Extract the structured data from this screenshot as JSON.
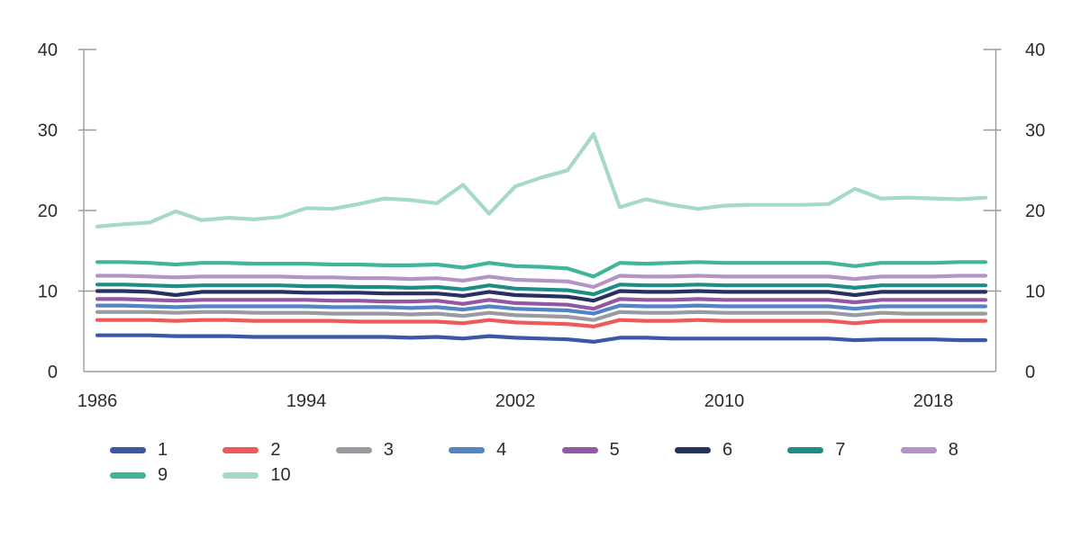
{
  "figure": {
    "background": "#ffffff",
    "text_color": "#2d2d2d",
    "axis_color": "#9c9c9c"
  },
  "chart_data": {
    "type": "line",
    "title": "",
    "xlabel": "",
    "ylabel": "",
    "x": [
      1986,
      1987,
      1988,
      1989,
      1990,
      1991,
      1992,
      1993,
      1994,
      1995,
      1996,
      1997,
      1998,
      1999,
      2000,
      2001,
      2002,
      2003,
      2004,
      2005,
      2006,
      2007,
      2008,
      2009,
      2010,
      2011,
      2012,
      2013,
      2014,
      2015,
      2016,
      2017,
      2018,
      2019,
      2020
    ],
    "xlim": [
      1986,
      2020
    ],
    "ylim": [
      0,
      40
    ],
    "y_tick_labels": [
      "0",
      "10",
      "20",
      "30",
      "40"
    ],
    "x_tick_labels": [
      "1986",
      "1994",
      "2002",
      "2010",
      "2018"
    ],
    "grid": false,
    "legend_position": "bottom-left-two-rows",
    "series": [
      {
        "name": "1",
        "color": "#3b57a6",
        "values": [
          4.5,
          4.5,
          4.5,
          4.4,
          4.4,
          4.4,
          4.3,
          4.3,
          4.3,
          4.3,
          4.3,
          4.3,
          4.2,
          4.3,
          4.1,
          4.4,
          4.2,
          4.1,
          4.0,
          3.7,
          4.2,
          4.2,
          4.1,
          4.1,
          4.1,
          4.1,
          4.1,
          4.1,
          4.1,
          3.9,
          4.0,
          4.0,
          4.0,
          3.9,
          3.9
        ]
      },
      {
        "name": "2",
        "color": "#ee5a58",
        "values": [
          6.4,
          6.4,
          6.4,
          6.3,
          6.4,
          6.4,
          6.3,
          6.3,
          6.3,
          6.3,
          6.2,
          6.2,
          6.2,
          6.2,
          6.0,
          6.4,
          6.1,
          6.0,
          5.9,
          5.6,
          6.4,
          6.3,
          6.3,
          6.4,
          6.3,
          6.3,
          6.3,
          6.3,
          6.3,
          6.0,
          6.3,
          6.3,
          6.3,
          6.3,
          6.3
        ]
      },
      {
        "name": "3",
        "color": "#9a9ba0",
        "values": [
          7.4,
          7.4,
          7.4,
          7.3,
          7.4,
          7.4,
          7.3,
          7.3,
          7.3,
          7.2,
          7.2,
          7.2,
          7.1,
          7.2,
          6.9,
          7.3,
          7.0,
          6.9,
          6.8,
          6.4,
          7.4,
          7.3,
          7.3,
          7.4,
          7.3,
          7.3,
          7.3,
          7.3,
          7.3,
          7.0,
          7.3,
          7.2,
          7.2,
          7.2,
          7.2
        ]
      },
      {
        "name": "4",
        "color": "#5185c5",
        "values": [
          8.2,
          8.2,
          8.1,
          8.0,
          8.1,
          8.1,
          8.1,
          8.1,
          8.1,
          8.0,
          8.0,
          8.0,
          7.9,
          8.0,
          7.7,
          8.1,
          7.8,
          7.7,
          7.6,
          7.2,
          8.2,
          8.1,
          8.1,
          8.2,
          8.1,
          8.1,
          8.1,
          8.1,
          8.1,
          7.8,
          8.1,
          8.1,
          8.1,
          8.1,
          8.1
        ]
      },
      {
        "name": "5",
        "color": "#9457a4",
        "values": [
          9.0,
          9.0,
          8.9,
          8.8,
          8.9,
          8.9,
          8.9,
          8.9,
          8.9,
          8.8,
          8.8,
          8.7,
          8.7,
          8.8,
          8.4,
          8.9,
          8.5,
          8.4,
          8.3,
          7.8,
          9.0,
          8.9,
          8.9,
          9.0,
          8.9,
          8.9,
          8.9,
          8.9,
          8.9,
          8.6,
          8.9,
          8.9,
          8.9,
          8.9,
          8.9
        ]
      },
      {
        "name": "6",
        "color": "#263061",
        "values": [
          10.0,
          10.0,
          9.9,
          9.5,
          9.9,
          9.9,
          9.9,
          9.9,
          9.8,
          9.8,
          9.8,
          9.7,
          9.7,
          9.7,
          9.4,
          9.9,
          9.5,
          9.4,
          9.3,
          8.8,
          10.0,
          9.9,
          9.9,
          10.0,
          9.9,
          9.9,
          9.9,
          9.9,
          9.9,
          9.5,
          9.9,
          9.9,
          9.9,
          9.9,
          9.9
        ]
      },
      {
        "name": "7",
        "color": "#1f8d87",
        "values": [
          10.8,
          10.8,
          10.7,
          10.6,
          10.7,
          10.7,
          10.7,
          10.7,
          10.6,
          10.6,
          10.5,
          10.5,
          10.4,
          10.5,
          10.2,
          10.7,
          10.3,
          10.2,
          10.1,
          9.6,
          10.8,
          10.7,
          10.7,
          10.8,
          10.7,
          10.7,
          10.7,
          10.7,
          10.7,
          10.4,
          10.7,
          10.7,
          10.7,
          10.7,
          10.7
        ]
      },
      {
        "name": "8",
        "color": "#b494c7",
        "values": [
          11.9,
          11.9,
          11.8,
          11.7,
          11.8,
          11.8,
          11.8,
          11.8,
          11.7,
          11.7,
          11.6,
          11.6,
          11.5,
          11.6,
          11.3,
          11.8,
          11.4,
          11.3,
          11.2,
          10.5,
          11.9,
          11.8,
          11.8,
          11.9,
          11.8,
          11.8,
          11.8,
          11.8,
          11.8,
          11.5,
          11.8,
          11.8,
          11.8,
          11.9,
          11.9
        ]
      },
      {
        "name": "9",
        "color": "#41b598",
        "values": [
          13.6,
          13.6,
          13.5,
          13.3,
          13.5,
          13.5,
          13.4,
          13.4,
          13.4,
          13.3,
          13.3,
          13.2,
          13.2,
          13.3,
          12.9,
          13.5,
          13.1,
          13.0,
          12.8,
          11.8,
          13.5,
          13.4,
          13.5,
          13.6,
          13.5,
          13.5,
          13.5,
          13.5,
          13.5,
          13.1,
          13.5,
          13.5,
          13.5,
          13.6,
          13.6
        ]
      },
      {
        "name": "10",
        "color": "#a5d9c9",
        "values": [
          18.0,
          18.3,
          18.5,
          19.9,
          18.8,
          19.1,
          18.9,
          19.2,
          20.3,
          20.2,
          20.8,
          21.5,
          21.3,
          20.9,
          23.2,
          19.6,
          23.0,
          24.1,
          25.0,
          29.5,
          20.4,
          21.4,
          20.7,
          20.2,
          20.6,
          20.7,
          20.7,
          20.7,
          20.8,
          22.7,
          21.5,
          21.6,
          21.5,
          21.4,
          21.6
        ]
      }
    ]
  }
}
